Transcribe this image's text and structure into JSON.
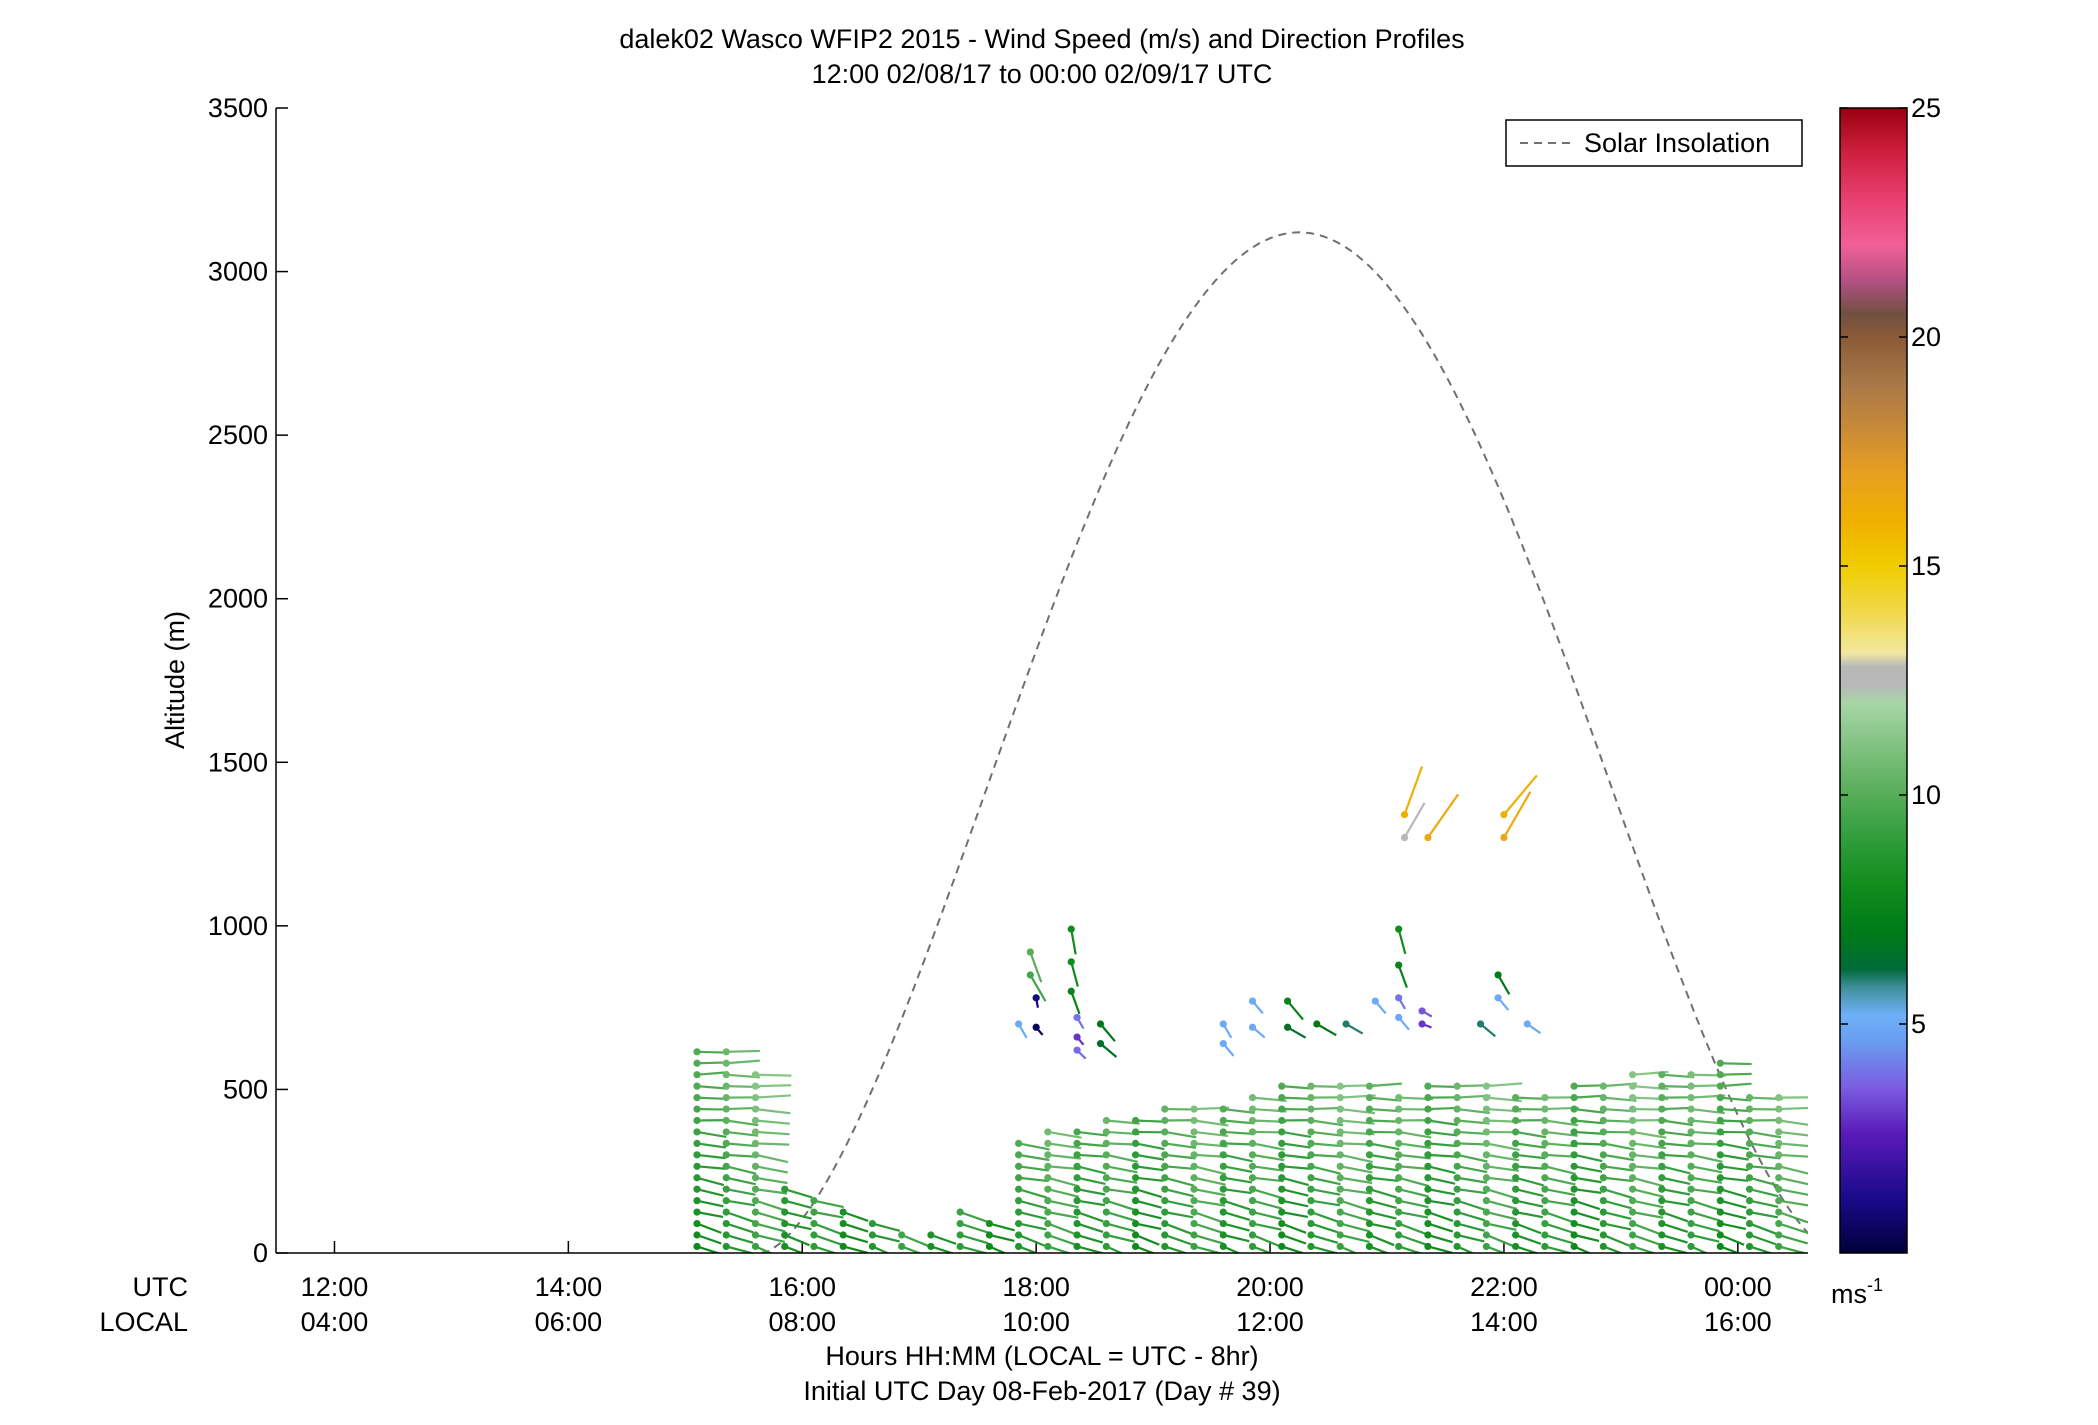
{
  "chart_data": {
    "type": "scatter",
    "title": "dalek02 Wasco WFIP2 2015 - Wind Speed (m/s) and Direction Profiles",
    "subtitle": "12:00 02/08/17 to 00:00 02/09/17  UTC",
    "ylabel": "Altitude (m)",
    "xlabel": "Hours HH:MM  (LOCAL = UTC - 8hr)",
    "xlabel2": "Initial UTC Day 08-Feb-2017 (Day # 39)",
    "ylim": [
      0,
      3500
    ],
    "yticks": [
      "0",
      "500",
      "1000",
      "1500",
      "2000",
      "2500",
      "3000",
      "3500"
    ],
    "xlim_hours": [
      11.5,
      24.6
    ],
    "xtick_hours": [
      12,
      14,
      16,
      18,
      20,
      22,
      24
    ],
    "xrow_utc_label": "UTC",
    "xrow_local_label": "LOCAL",
    "xticks_utc": [
      "12:00",
      "14:00",
      "16:00",
      "18:00",
      "20:00",
      "22:00",
      "00:00"
    ],
    "xticks_local": [
      "04:00",
      "06:00",
      "08:00",
      "10:00",
      "12:00",
      "14:00",
      "16:00"
    ],
    "legend": {
      "entry": "Solar Insolation",
      "placement": "top-right",
      "style": "dashed",
      "color": "#707070"
    },
    "solar_insolation": {
      "sunrise_hour": 15.65,
      "sunset_hour": 24.85,
      "peak_hour": 20.2,
      "peak_altitude_m": 3120
    },
    "colorbar": {
      "range": [
        0,
        25
      ],
      "ticks": [
        "5",
        "10",
        "15",
        "20",
        "25"
      ],
      "unit_text": "ms",
      "unit_sup": "-1",
      "stops": [
        {
          "v": 0,
          "c": "#00003a"
        },
        {
          "v": 1.2,
          "c": "#1a0a8a"
        },
        {
          "v": 2.6,
          "c": "#5a1ab8"
        },
        {
          "v": 3.6,
          "c": "#7a5ce0"
        },
        {
          "v": 4.6,
          "c": "#6a9cf0"
        },
        {
          "v": 5.2,
          "c": "#6fb0f8"
        },
        {
          "v": 5.8,
          "c": "#3f8f9a"
        },
        {
          "v": 6.2,
          "c": "#006a3a"
        },
        {
          "v": 7.0,
          "c": "#007a18"
        },
        {
          "v": 8.0,
          "c": "#118c1c"
        },
        {
          "v": 9.0,
          "c": "#2f9c3a"
        },
        {
          "v": 10.0,
          "c": "#57ad59"
        },
        {
          "v": 11.0,
          "c": "#7ec07e"
        },
        {
          "v": 12.0,
          "c": "#a7d6a7"
        },
        {
          "v": 12.4,
          "c": "#b8b8b8"
        },
        {
          "v": 12.8,
          "c": "#b8b8b8"
        },
        {
          "v": 13.1,
          "c": "#f2e8a0"
        },
        {
          "v": 14.0,
          "c": "#f2d84a"
        },
        {
          "v": 15.0,
          "c": "#f0cc00"
        },
        {
          "v": 16.0,
          "c": "#f0b000"
        },
        {
          "v": 17.0,
          "c": "#e8a020"
        },
        {
          "v": 18.0,
          "c": "#c88a38"
        },
        {
          "v": 19.0,
          "c": "#a87848"
        },
        {
          "v": 20.0,
          "c": "#8a5a38"
        },
        {
          "v": 20.5,
          "c": "#705040"
        },
        {
          "v": 21.2,
          "c": "#b05080"
        },
        {
          "v": 22.0,
          "c": "#f06098"
        },
        {
          "v": 23.0,
          "c": "#e84070"
        },
        {
          "v": 24.0,
          "c": "#d02040"
        },
        {
          "v": 25.0,
          "c": "#9a0010"
        }
      ]
    },
    "wind_profiles": {
      "profile_times_hours": [
        15.1,
        15.35,
        15.6,
        15.85,
        16.1,
        16.35,
        16.6,
        16.85,
        17.1,
        17.35,
        17.6,
        17.85,
        18.1,
        18.35,
        18.6,
        18.85,
        19.1,
        19.35,
        19.6,
        19.85,
        20.1,
        20.35,
        20.6,
        20.85,
        21.1,
        21.35,
        21.6,
        21.85,
        22.1,
        22.35,
        22.6,
        22.85,
        23.1,
        23.35,
        23.6,
        23.85,
        24.1,
        24.35
      ],
      "profile_top_m": [
        640,
        630,
        560,
        210,
        160,
        140,
        110,
        80,
        60,
        130,
        90,
        360,
        380,
        400,
        420,
        420,
        440,
        460,
        460,
        500,
        520,
        510,
        530,
        510,
        500,
        520,
        520,
        510,
        500,
        500,
        520,
        520,
        560,
        560,
        570,
        580,
        500,
        500
      ],
      "level_spacing_m": 35,
      "lowest_level_m": 20,
      "speed_near_surface_ms": 8.5,
      "speed_at_top_ms": 10.5,
      "direction_deg_lower": 290,
      "direction_deg_upper": 270,
      "barb_length_scale_px_per_ms": 3.2
    },
    "upper_wind_points": [
      {
        "hour": 17.95,
        "alt": 920,
        "speed": 10.0,
        "dir": 340
      },
      {
        "hour": 17.95,
        "alt": 850,
        "speed": 9.5,
        "dir": 330
      },
      {
        "hour": 18.0,
        "alt": 780,
        "speed": 1.0,
        "dir": 350
      },
      {
        "hour": 17.85,
        "alt": 700,
        "speed": 5.0,
        "dir": 330
      },
      {
        "hour": 18.0,
        "alt": 690,
        "speed": 0.5,
        "dir": 320
      },
      {
        "hour": 18.3,
        "alt": 990,
        "speed": 8.0,
        "dir": 350
      },
      {
        "hour": 18.3,
        "alt": 890,
        "speed": 8.0,
        "dir": 345
      },
      {
        "hour": 18.3,
        "alt": 800,
        "speed": 7.5,
        "dir": 340
      },
      {
        "hour": 18.35,
        "alt": 720,
        "speed": 4.0,
        "dir": 330
      },
      {
        "hour": 18.35,
        "alt": 660,
        "speed": 3.0,
        "dir": 320
      },
      {
        "hour": 18.35,
        "alt": 620,
        "speed": 3.8,
        "dir": 315
      },
      {
        "hour": 18.55,
        "alt": 700,
        "speed": 7.0,
        "dir": 320
      },
      {
        "hour": 18.55,
        "alt": 640,
        "speed": 6.5,
        "dir": 310
      },
      {
        "hour": 19.6,
        "alt": 700,
        "speed": 5.0,
        "dir": 330
      },
      {
        "hour": 19.6,
        "alt": 640,
        "speed": 5.0,
        "dir": 320
      },
      {
        "hour": 19.85,
        "alt": 770,
        "speed": 5.0,
        "dir": 320
      },
      {
        "hour": 19.85,
        "alt": 690,
        "speed": 5.0,
        "dir": 310
      },
      {
        "hour": 20.15,
        "alt": 770,
        "speed": 7.5,
        "dir": 320
      },
      {
        "hour": 20.15,
        "alt": 690,
        "speed": 6.5,
        "dir": 300
      },
      {
        "hour": 20.4,
        "alt": 700,
        "speed": 7.0,
        "dir": 300
      },
      {
        "hour": 20.65,
        "alt": 700,
        "speed": 6.0,
        "dir": 300
      },
      {
        "hour": 20.9,
        "alt": 770,
        "speed": 5.0,
        "dir": 320
      },
      {
        "hour": 21.1,
        "alt": 990,
        "speed": 8.0,
        "dir": 345
      },
      {
        "hour": 21.1,
        "alt": 880,
        "speed": 7.5,
        "dir": 340
      },
      {
        "hour": 21.1,
        "alt": 780,
        "speed": 4.0,
        "dir": 330
      },
      {
        "hour": 21.1,
        "alt": 720,
        "speed": 5.0,
        "dir": 320
      },
      {
        "hour": 21.3,
        "alt": 740,
        "speed": 3.5,
        "dir": 300
      },
      {
        "hour": 21.3,
        "alt": 700,
        "speed": 3.0,
        "dir": 290
      },
      {
        "hour": 21.8,
        "alt": 700,
        "speed": 6.0,
        "dir": 310
      },
      {
        "hour": 21.95,
        "alt": 850,
        "speed": 7.0,
        "dir": 330
      },
      {
        "hour": 21.95,
        "alt": 780,
        "speed": 5.0,
        "dir": 320
      },
      {
        "hour": 22.2,
        "alt": 700,
        "speed": 5.0,
        "dir": 305
      },
      {
        "hour": 21.15,
        "alt": 1340,
        "speed": 16.0,
        "dir": 200
      },
      {
        "hour": 21.15,
        "alt": 1270,
        "speed": 12.5,
        "dir": 210
      },
      {
        "hour": 21.35,
        "alt": 1270,
        "speed": 16.5,
        "dir": 215
      },
      {
        "hour": 22.0,
        "alt": 1340,
        "speed": 16.0,
        "dir": 220
      },
      {
        "hour": 22.0,
        "alt": 1270,
        "speed": 16.5,
        "dir": 210
      }
    ]
  }
}
